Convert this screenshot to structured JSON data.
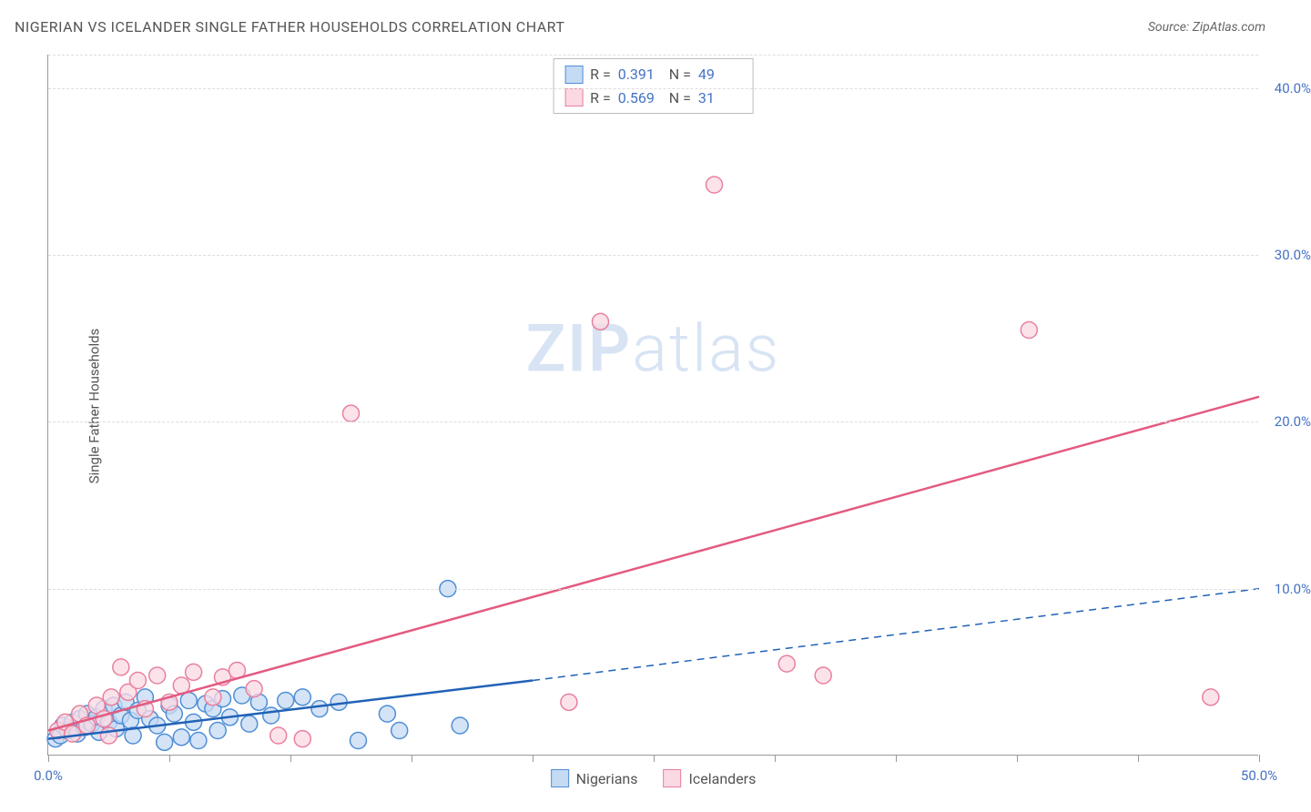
{
  "title": "NIGERIAN VS ICELANDER SINGLE FATHER HOUSEHOLDS CORRELATION CHART",
  "source": "Source: ZipAtlas.com",
  "y_axis_label": "Single Father Households",
  "watermark_bold": "ZIP",
  "watermark_light": "atlas",
  "chart": {
    "type": "scatter",
    "xlim": [
      0,
      50
    ],
    "ylim": [
      0,
      42
    ],
    "x_ticks": [
      0,
      5,
      10,
      15,
      20,
      25,
      30,
      35,
      40,
      45,
      50
    ],
    "x_tick_labels": {
      "0": "0.0%",
      "50": "50.0%"
    },
    "y_ticks": [
      10,
      20,
      30,
      40
    ],
    "y_tick_labels": {
      "10": "10.0%",
      "20": "20.0%",
      "30": "30.0%",
      "40": "40.0%"
    },
    "grid_color": "#dddddd",
    "background_color": "#ffffff",
    "axis_color": "#999999",
    "text_color": "#555555",
    "value_color": "#4472c4",
    "marker_radius": 9,
    "marker_stroke_width": 1.5,
    "trend_line_width": 2.5,
    "series": [
      {
        "name": "Nigerians",
        "fill_color": "#c5daf3",
        "stroke_color": "#4f8fd6",
        "line_color": "#2062b7",
        "R": "0.391",
        "N": "49",
        "trend": {
          "x1": 0,
          "y1": 1.0,
          "x2_solid": 20,
          "y2_solid": 4.5,
          "x2_dash": 50,
          "y2_dash": 10.0
        },
        "points": [
          [
            0.3,
            1.0
          ],
          [
            0.5,
            1.2
          ],
          [
            0.6,
            1.8
          ],
          [
            0.8,
            1.5
          ],
          [
            1.0,
            2.0
          ],
          [
            1.2,
            1.3
          ],
          [
            1.3,
            2.2
          ],
          [
            1.5,
            1.7
          ],
          [
            1.6,
            2.5
          ],
          [
            1.8,
            1.9
          ],
          [
            2.0,
            2.3
          ],
          [
            2.1,
            1.4
          ],
          [
            2.3,
            2.8
          ],
          [
            2.5,
            2.0
          ],
          [
            2.7,
            3.0
          ],
          [
            2.8,
            1.6
          ],
          [
            3.0,
            2.4
          ],
          [
            3.2,
            3.2
          ],
          [
            3.4,
            2.1
          ],
          [
            3.5,
            1.2
          ],
          [
            3.7,
            2.7
          ],
          [
            4.0,
            3.5
          ],
          [
            4.2,
            2.2
          ],
          [
            4.5,
            1.8
          ],
          [
            4.8,
            0.8
          ],
          [
            5.0,
            3.0
          ],
          [
            5.2,
            2.5
          ],
          [
            5.5,
            1.1
          ],
          [
            5.8,
            3.3
          ],
          [
            6.0,
            2.0
          ],
          [
            6.2,
            0.9
          ],
          [
            6.5,
            3.1
          ],
          [
            6.8,
            2.8
          ],
          [
            7.0,
            1.5
          ],
          [
            7.2,
            3.4
          ],
          [
            7.5,
            2.3
          ],
          [
            8.0,
            3.6
          ],
          [
            8.3,
            1.9
          ],
          [
            8.7,
            3.2
          ],
          [
            9.2,
            2.4
          ],
          [
            9.8,
            3.3
          ],
          [
            10.5,
            3.5
          ],
          [
            11.2,
            2.8
          ],
          [
            12.0,
            3.2
          ],
          [
            12.8,
            0.9
          ],
          [
            14.0,
            2.5
          ],
          [
            14.5,
            1.5
          ],
          [
            16.5,
            10.0
          ],
          [
            17.0,
            1.8
          ]
        ]
      },
      {
        "name": "Icelanders",
        "fill_color": "#fbd9e3",
        "stroke_color": "#e9809e",
        "line_color": "#e35a80",
        "R": "0.569",
        "N": "31",
        "trend": {
          "x1": 0,
          "y1": 1.5,
          "x2_solid": 50,
          "y2_solid": 21.5,
          "x2_dash": 50,
          "y2_dash": 21.5
        },
        "points": [
          [
            0.4,
            1.5
          ],
          [
            0.7,
            2.0
          ],
          [
            1.0,
            1.3
          ],
          [
            1.3,
            2.5
          ],
          [
            1.6,
            1.8
          ],
          [
            2.0,
            3.0
          ],
          [
            2.3,
            2.2
          ],
          [
            2.6,
            3.5
          ],
          [
            3.0,
            5.3
          ],
          [
            3.3,
            3.8
          ],
          [
            3.7,
            4.5
          ],
          [
            4.0,
            2.8
          ],
          [
            4.5,
            4.8
          ],
          [
            5.0,
            3.2
          ],
          [
            5.5,
            4.2
          ],
          [
            6.0,
            5.0
          ],
          [
            6.8,
            3.5
          ],
          [
            7.2,
            4.7
          ],
          [
            7.8,
            5.1
          ],
          [
            8.5,
            4.0
          ],
          [
            9.5,
            1.2
          ],
          [
            10.5,
            1.0
          ],
          [
            12.5,
            20.5
          ],
          [
            21.5,
            3.2
          ],
          [
            22.8,
            26.0
          ],
          [
            27.5,
            34.2
          ],
          [
            30.5,
            5.5
          ],
          [
            32.0,
            4.8
          ],
          [
            40.5,
            25.5
          ],
          [
            48.0,
            3.5
          ],
          [
            2.5,
            1.2
          ]
        ]
      }
    ]
  },
  "legend_bottom": [
    {
      "label": "Nigerians",
      "fill": "#c5daf3",
      "stroke": "#4f8fd6"
    },
    {
      "label": "Icelanders",
      "fill": "#fbd9e3",
      "stroke": "#e9809e"
    }
  ]
}
